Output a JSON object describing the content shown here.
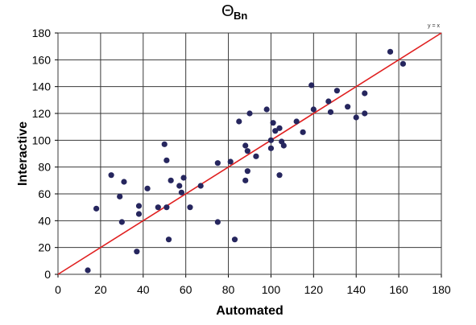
{
  "chart_data": {
    "type": "scatter",
    "title": "Θ",
    "title_subscript": "Bn",
    "xlabel": "Automated",
    "ylabel": "Interactive",
    "xlim": [
      0,
      180
    ],
    "ylim": [
      0,
      180
    ],
    "xticks": [
      "0",
      "20",
      "40",
      "60",
      "80",
      "100",
      "120",
      "140",
      "160",
      "180"
    ],
    "yticks": [
      "0",
      "20",
      "40",
      "60",
      "80",
      "100",
      "120",
      "140",
      "160",
      "180"
    ],
    "grid": true,
    "reference_line": {
      "label": "y = x",
      "from": [
        0,
        0
      ],
      "to": [
        180,
        180
      ],
      "color": "#e02020"
    },
    "marker_color": "#26265e",
    "points": [
      [
        14,
        3
      ],
      [
        18,
        49
      ],
      [
        25,
        74
      ],
      [
        29,
        58
      ],
      [
        30,
        39
      ],
      [
        31,
        69
      ],
      [
        37,
        17
      ],
      [
        38,
        45
      ],
      [
        38,
        51
      ],
      [
        42,
        64
      ],
      [
        47,
        50
      ],
      [
        50,
        97
      ],
      [
        51,
        85
      ],
      [
        51,
        50
      ],
      [
        52,
        26
      ],
      [
        53,
        70
      ],
      [
        57,
        66
      ],
      [
        58,
        61
      ],
      [
        59,
        72
      ],
      [
        62,
        50
      ],
      [
        67,
        66
      ],
      [
        75,
        83
      ],
      [
        75,
        39
      ],
      [
        81,
        84
      ],
      [
        83,
        26
      ],
      [
        85,
        114
      ],
      [
        88,
        96
      ],
      [
        88,
        70
      ],
      [
        89,
        77
      ],
      [
        89,
        92
      ],
      [
        90,
        120
      ],
      [
        93,
        88
      ],
      [
        98,
        123
      ],
      [
        100,
        94
      ],
      [
        100,
        100
      ],
      [
        101,
        113
      ],
      [
        102,
        107
      ],
      [
        104,
        109
      ],
      [
        104,
        74
      ],
      [
        105,
        99
      ],
      [
        106,
        96
      ],
      [
        112,
        114
      ],
      [
        115,
        106
      ],
      [
        119,
        141
      ],
      [
        120,
        123
      ],
      [
        127,
        129
      ],
      [
        128,
        121
      ],
      [
        131,
        137
      ],
      [
        136,
        125
      ],
      [
        140,
        117
      ],
      [
        144,
        120
      ],
      [
        144,
        135
      ],
      [
        156,
        166
      ],
      [
        162,
        157
      ]
    ]
  }
}
